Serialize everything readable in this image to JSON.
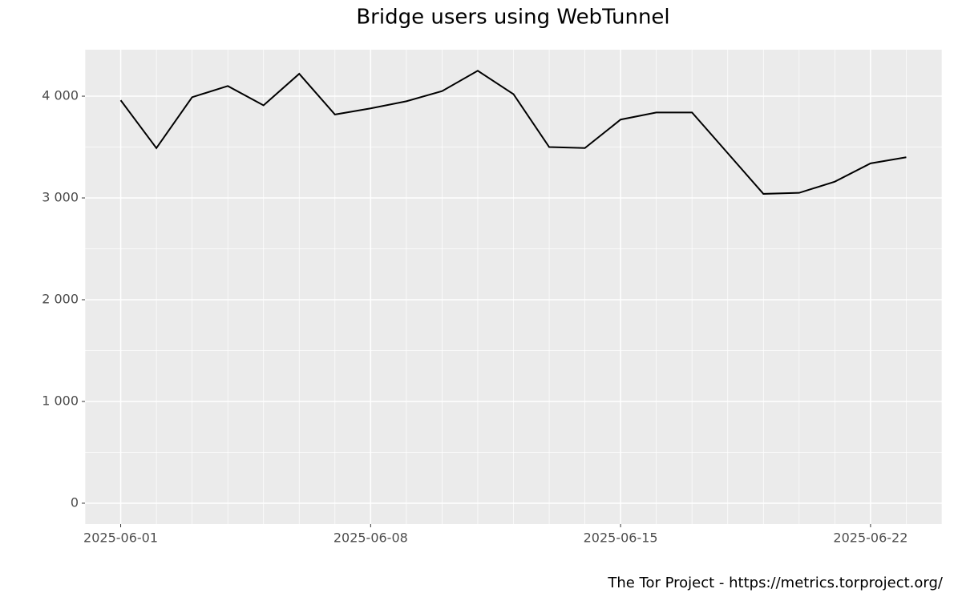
{
  "chart_data": {
    "type": "line",
    "title": "Bridge users using WebTunnel",
    "caption": "The Tor Project - https://metrics.torproject.org/",
    "x": [
      "2025-06-01",
      "2025-06-02",
      "2025-06-03",
      "2025-06-04",
      "2025-06-05",
      "2025-06-06",
      "2025-06-07",
      "2025-06-08",
      "2025-06-09",
      "2025-06-10",
      "2025-06-11",
      "2025-06-12",
      "2025-06-13",
      "2025-06-14",
      "2025-06-15",
      "2025-06-16",
      "2025-06-17",
      "2025-06-18",
      "2025-06-19",
      "2025-06-20",
      "2025-06-21",
      "2025-06-22",
      "2025-06-23"
    ],
    "series": [
      {
        "name": "WebTunnel",
        "color": "#000000",
        "values": [
          3960,
          3490,
          3990,
          4100,
          3910,
          4220,
          3820,
          3880,
          3950,
          4050,
          4250,
          4020,
          3500,
          3490,
          3770,
          3840,
          3840,
          3440,
          3040,
          3050,
          3160,
          3340,
          3400
        ]
      }
    ],
    "xlim": [
      "2025-05-31",
      "2025-06-24"
    ],
    "xticks": [
      "2025-06-01",
      "2025-06-08",
      "2025-06-15",
      "2025-06-22"
    ],
    "ylim": [
      -205,
      4457
    ],
    "yticks": [
      0,
      {
        "value": 1000,
        "label": "1 000"
      },
      {
        "value": 2000,
        "label": "2 000"
      },
      {
        "value": 3000,
        "label": "3 000"
      },
      {
        "value": 4000,
        "label": "4 000"
      }
    ],
    "grid": true
  }
}
